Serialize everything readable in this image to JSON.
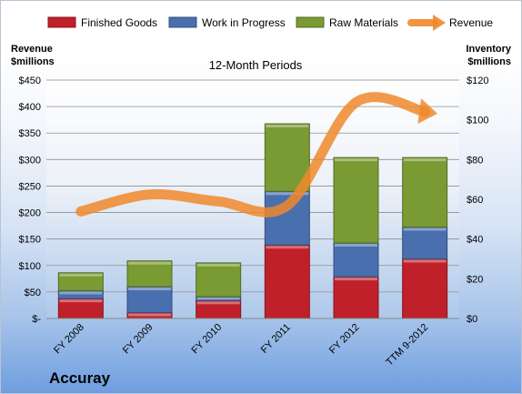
{
  "company": "Accuray",
  "chart_data": {
    "type": "bar",
    "stacked": true,
    "title": "12-Month Periods",
    "ylabel_left": "Revenue\n$millions",
    "ylabel_right": "Inventory\n$millions",
    "categories": [
      "FY 2008",
      "FY 2009",
      "FY 2010",
      "FY 2011",
      "FY 2012",
      "TTM 9-2012"
    ],
    "series": [
      {
        "name": "Finished Goods",
        "axis": "right",
        "kind": "bar",
        "color": "#c0202a",
        "values": [
          10,
          3,
          9,
          37,
          21,
          30
        ]
      },
      {
        "name": "Work in Progress",
        "axis": "right",
        "kind": "bar",
        "color": "#4a6fae",
        "values": [
          4,
          13,
          2,
          27,
          17,
          16
        ]
      },
      {
        "name": "Raw Materials",
        "axis": "right",
        "kind": "bar",
        "color": "#7a9a34",
        "values": [
          9,
          13,
          17,
          34,
          43,
          35
        ]
      },
      {
        "name": "Revenue",
        "axis": "left",
        "kind": "line",
        "color": "#f0882c",
        "values": [
          202,
          234,
          221,
          213,
          408,
          390
        ]
      }
    ],
    "ylim_left": [
      0,
      450
    ],
    "yticks_left": [
      "$-",
      "$50",
      "$100",
      "$150",
      "$200",
      "$250",
      "$300",
      "$350",
      "$400",
      "$450"
    ],
    "ylim_right": [
      0,
      120
    ],
    "yticks_right": [
      "$0",
      "$20",
      "$40",
      "$60",
      "$80",
      "$100",
      "$120"
    ],
    "grid": true,
    "legend": "top"
  }
}
